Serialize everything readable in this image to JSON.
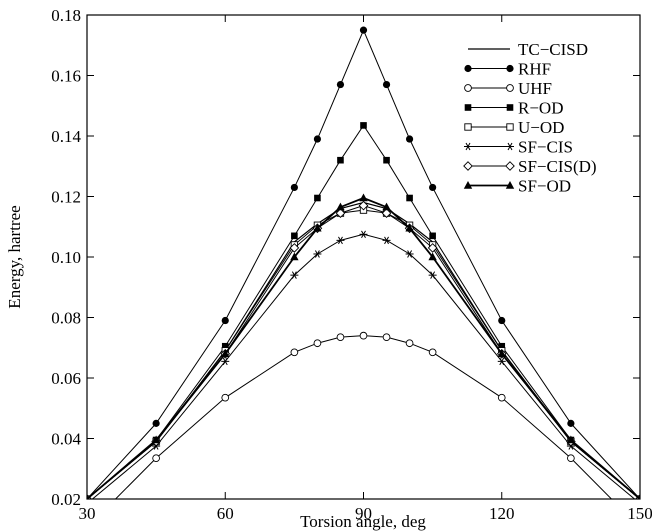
{
  "chart_data": {
    "type": "line",
    "title": "",
    "xlabel": "Torsion angle, deg",
    "ylabel": "Energy, hartree",
    "xlim": [
      30,
      150
    ],
    "ylim": [
      0.02,
      0.18
    ],
    "xticks": [
      30,
      60,
      90,
      120,
      150
    ],
    "yticks": [
      0.02,
      0.04,
      0.06,
      0.08,
      0.1,
      0.12,
      0.14,
      0.16,
      0.18
    ],
    "xtick_labels": [
      "30",
      "60",
      "90",
      "120",
      "150"
    ],
    "ytick_labels": [
      "0.02",
      "0.04",
      "0.06",
      "0.08",
      "0.10",
      "0.12",
      "0.14",
      "0.16",
      "0.18"
    ],
    "grid": false,
    "legend_position": "top-right",
    "series": [
      {
        "name": "TC−CISD",
        "marker": "none",
        "stroke_width": 1.2,
        "x": [
          30,
          45,
          60,
          75,
          80,
          85,
          90,
          95,
          100,
          105,
          120,
          135,
          150
        ],
        "y": [
          0.02,
          0.039,
          0.069,
          0.105,
          0.111,
          0.116,
          0.118,
          0.116,
          0.111,
          0.105,
          0.069,
          0.039,
          0.02
        ]
      },
      {
        "name": "RHF",
        "marker": "filled-circle",
        "stroke_width": 1,
        "x": [
          30,
          45,
          60,
          75,
          80,
          85,
          90,
          95,
          100,
          105,
          120,
          135,
          150
        ],
        "y": [
          0.02,
          0.045,
          0.079,
          0.123,
          0.139,
          0.157,
          0.175,
          0.157,
          0.139,
          0.123,
          0.079,
          0.045,
          0.02
        ]
      },
      {
        "name": "UHF",
        "marker": "open-circle",
        "stroke_width": 1,
        "x": [
          30,
          45,
          60,
          75,
          80,
          85,
          90,
          95,
          100,
          105,
          120,
          135,
          150
        ],
        "y": [
          0.0105,
          0.0335,
          0.0535,
          0.0685,
          0.0715,
          0.0735,
          0.074,
          0.0735,
          0.0715,
          0.0685,
          0.0535,
          0.0335,
          0.0105
        ]
      },
      {
        "name": "R−OD",
        "marker": "filled-square",
        "stroke_width": 1,
        "x": [
          30,
          45,
          60,
          75,
          80,
          85,
          90,
          95,
          100,
          105,
          120,
          135,
          150
        ],
        "y": [
          0.02,
          0.0395,
          0.0705,
          0.107,
          0.1195,
          0.132,
          0.1435,
          0.132,
          0.1195,
          0.107,
          0.0705,
          0.0395,
          0.02
        ]
      },
      {
        "name": "U−OD",
        "marker": "open-square",
        "stroke_width": 1,
        "x": [
          30,
          45,
          60,
          75,
          80,
          85,
          90,
          95,
          100,
          105,
          120,
          135,
          150
        ],
        "y": [
          0.02,
          0.039,
          0.069,
          0.104,
          0.1105,
          0.1145,
          0.1155,
          0.1145,
          0.1105,
          0.104,
          0.069,
          0.039,
          0.02
        ]
      },
      {
        "name": "SF−CIS",
        "marker": "asterisk",
        "stroke_width": 1,
        "x": [
          30,
          45,
          60,
          75,
          80,
          85,
          90,
          95,
          100,
          105,
          120,
          135,
          150
        ],
        "y": [
          0.0185,
          0.0375,
          0.0655,
          0.094,
          0.101,
          0.1055,
          0.1075,
          0.1055,
          0.101,
          0.094,
          0.0655,
          0.0375,
          0.0185
        ]
      },
      {
        "name": "SF−CIS(D)",
        "marker": "open-diamond",
        "stroke_width": 1,
        "x": [
          30,
          45,
          60,
          75,
          80,
          85,
          90,
          95,
          100,
          105,
          120,
          135,
          150
        ],
        "y": [
          0.02,
          0.039,
          0.068,
          0.103,
          0.1095,
          0.1145,
          0.117,
          0.1145,
          0.1095,
          0.103,
          0.068,
          0.039,
          0.02
        ]
      },
      {
        "name": "SF−OD",
        "marker": "filled-triangle",
        "stroke_width": 1.8,
        "x": [
          30,
          45,
          60,
          75,
          80,
          85,
          90,
          95,
          100,
          105,
          120,
          135,
          150
        ],
        "y": [
          0.02,
          0.0395,
          0.068,
          0.1,
          0.1095,
          0.1165,
          0.1195,
          0.1165,
          0.1095,
          0.1,
          0.068,
          0.0395,
          0.02
        ]
      }
    ]
  }
}
